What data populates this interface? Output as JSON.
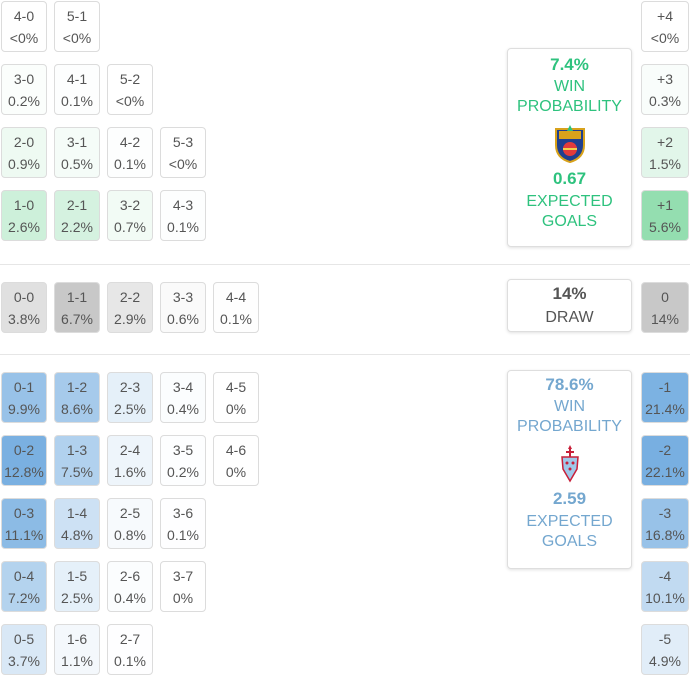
{
  "home": {
    "win_probability": "7.4%",
    "win_label": "WIN\nPROBABILITY",
    "expected_goals": "0.67",
    "xg_label": "EXPECTED\nGOALS",
    "color": "#2ec27e"
  },
  "draw": {
    "probability": "14%",
    "label": "DRAW"
  },
  "away": {
    "win_probability": "78.6%",
    "win_label": "WIN\nPROBABILITY",
    "expected_goals": "2.59",
    "xg_label": "EXPECTED\nGOALS",
    "color": "#74a7cf"
  },
  "chart_data": {
    "type": "table",
    "home_win_scores": [
      {
        "score": "4-0",
        "prob": "<0%"
      },
      {
        "score": "5-1",
        "prob": "<0%"
      },
      {
        "score": "3-0",
        "prob": "0.2%"
      },
      {
        "score": "4-1",
        "prob": "0.1%"
      },
      {
        "score": "5-2",
        "prob": "<0%"
      },
      {
        "score": "2-0",
        "prob": "0.9%"
      },
      {
        "score": "3-1",
        "prob": "0.5%"
      },
      {
        "score": "4-2",
        "prob": "0.1%"
      },
      {
        "score": "5-3",
        "prob": "<0%"
      },
      {
        "score": "1-0",
        "prob": "2.6%"
      },
      {
        "score": "2-1",
        "prob": "2.2%"
      },
      {
        "score": "3-2",
        "prob": "0.7%"
      },
      {
        "score": "4-3",
        "prob": "0.1%"
      }
    ],
    "draw_scores": [
      {
        "score": "0-0",
        "prob": "3.8%"
      },
      {
        "score": "1-1",
        "prob": "6.7%"
      },
      {
        "score": "2-2",
        "prob": "2.9%"
      },
      {
        "score": "3-3",
        "prob": "0.6%"
      },
      {
        "score": "4-4",
        "prob": "0.1%"
      }
    ],
    "away_win_scores": [
      {
        "score": "0-1",
        "prob": "9.9%"
      },
      {
        "score": "1-2",
        "prob": "8.6%"
      },
      {
        "score": "2-3",
        "prob": "2.5%"
      },
      {
        "score": "3-4",
        "prob": "0.4%"
      },
      {
        "score": "4-5",
        "prob": "0%"
      },
      {
        "score": "0-2",
        "prob": "12.8%"
      },
      {
        "score": "1-3",
        "prob": "7.5%"
      },
      {
        "score": "2-4",
        "prob": "1.6%"
      },
      {
        "score": "3-5",
        "prob": "0.2%"
      },
      {
        "score": "4-6",
        "prob": "0%"
      },
      {
        "score": "0-3",
        "prob": "11.1%"
      },
      {
        "score": "1-4",
        "prob": "4.8%"
      },
      {
        "score": "2-5",
        "prob": "0.8%"
      },
      {
        "score": "3-6",
        "prob": "0.1%"
      },
      {
        "score": "0-4",
        "prob": "7.2%"
      },
      {
        "score": "1-5",
        "prob": "2.5%"
      },
      {
        "score": "2-6",
        "prob": "0.4%"
      },
      {
        "score": "3-7",
        "prob": "0%"
      },
      {
        "score": "0-5",
        "prob": "3.7%"
      },
      {
        "score": "1-6",
        "prob": "1.1%"
      },
      {
        "score": "2-7",
        "prob": "0.1%"
      }
    ],
    "margins": [
      {
        "label": "+4",
        "prob": "<0%"
      },
      {
        "label": "+3",
        "prob": "0.3%"
      },
      {
        "label": "+2",
        "prob": "1.5%"
      },
      {
        "label": "+1",
        "prob": "5.6%"
      },
      {
        "label": "0",
        "prob": "14%"
      },
      {
        "label": "-1",
        "prob": "21.4%"
      },
      {
        "label": "-2",
        "prob": "22.1%"
      },
      {
        "label": "-3",
        "prob": "16.8%"
      },
      {
        "label": "-4",
        "prob": "10.1%"
      },
      {
        "label": "-5",
        "prob": "4.9%"
      }
    ]
  }
}
